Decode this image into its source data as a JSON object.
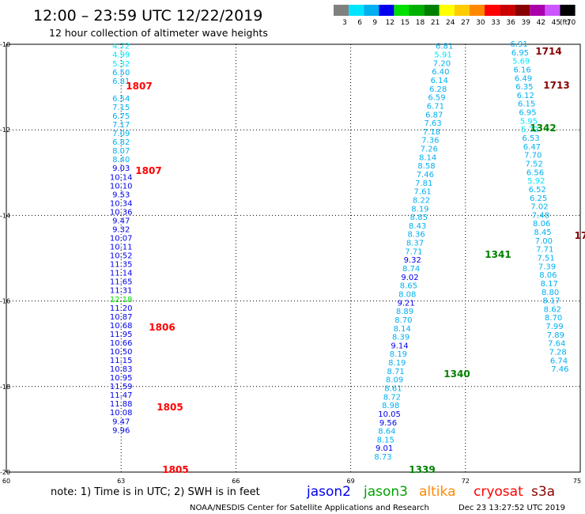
{
  "header": {
    "title": "12:00 – 23:59 UTC 12/22/2019",
    "subtitle": "12 hour collection of altimeter wave heights",
    "scale_unit": "(ft)"
  },
  "colorbar": [
    {
      "label": "3",
      "color": "#808080"
    },
    {
      "label": "6",
      "color": "#00e5ff"
    },
    {
      "label": "9",
      "color": "#00b0f0"
    },
    {
      "label": "12",
      "color": "#0000ee"
    },
    {
      "label": "15",
      "color": "#00e000"
    },
    {
      "label": "18",
      "color": "#00b000"
    },
    {
      "label": "21",
      "color": "#008000"
    },
    {
      "label": "24",
      "color": "#ffff00"
    },
    {
      "label": "27",
      "color": "#ffcc00"
    },
    {
      "label": "30",
      "color": "#ff8800"
    },
    {
      "label": "33",
      "color": "#ff0000"
    },
    {
      "label": "36",
      "color": "#cc0000"
    },
    {
      "label": "39",
      "color": "#880000"
    },
    {
      "label": "42",
      "color": "#aa00aa"
    },
    {
      "label": "45",
      "color": "#cc55ff"
    },
    {
      "label": "70",
      "color": "#000000"
    }
  ],
  "axes": {
    "lat_labels": [
      "-10",
      "-12",
      "-14",
      "-16",
      "-18",
      "-20"
    ],
    "lon_labels": [
      "60",
      "63",
      "66",
      "69",
      "72",
      "75"
    ]
  },
  "tracks": [
    {
      "lon": 63.0,
      "lat_start": -10.05,
      "lat_step": 0.204,
      "values": [
        "4.72",
        "4.99",
        "5.32",
        "6.50",
        "6.81",
        "",
        "6.54",
        "7.15",
        "6.75",
        "7.17",
        "7.09",
        "6.82",
        "8.07",
        "8.40",
        "9.03",
        "10.14",
        "10.10",
        "9.53",
        "10.34",
        "10.36",
        "9.47",
        "9.32",
        "10.07",
        "10.11",
        "10.52",
        "11.35",
        "11.14",
        "11.65",
        "11.31",
        "12.18",
        "11.20",
        "10.87",
        "10.68",
        "11.95",
        "10.66",
        "10.50",
        "11.15",
        "10.83",
        "10.95",
        "11.59",
        "11.47",
        "11.88",
        "10.08",
        "9.47",
        "9.96"
      ]
    },
    {
      "lon": 71.45,
      "lat_start": -10.05,
      "lat_step": 0.2,
      "values": [
        "6.81",
        "5.91",
        "7.20",
        "6.40",
        "6.14",
        "6.28",
        "6.59",
        "6.71",
        "6.87",
        "7.63",
        "7.18",
        "7.36",
        "7.26",
        "8.14",
        "8.58",
        "7.46",
        "7.81",
        "7.61",
        "8.22",
        "8.19",
        "8.85",
        "8.43",
        "8.36",
        "8.37",
        "7.71",
        "9.32",
        "8.74",
        "9.02",
        "8.65",
        "8.08",
        "9.21",
        "8.89",
        "8.70",
        "8.14",
        "8.39",
        "9.14",
        "8.19",
        "8.19",
        "8.71",
        "8.09",
        "8.61",
        "8.72",
        "8.98",
        "10.05",
        "9.56",
        "8.64",
        "8.15",
        "9.01",
        "8.73"
      ]
    },
    {
      "lon": 73.4,
      "lat_start": -10.0,
      "lat_step": 0.2,
      "values": [
        "6.91",
        "6.95",
        "5.69",
        "6.16",
        "6.49",
        "6.35",
        "6.12",
        "6.15",
        "6.95",
        "5.95",
        "5.72",
        "6.53",
        "6.47",
        "7.70",
        "7.52",
        "6.56",
        "5.92",
        "6.52",
        "6.25",
        "7.02",
        "7.48",
        "8.06",
        "8.45",
        "7.00",
        "7.71",
        "7.51",
        "7.39",
        "8.06",
        "8.17",
        "8.80",
        "8.17",
        "8.62",
        "8.70",
        "7.99",
        "7.89",
        "7.64",
        "7.28",
        "6.74",
        "7.46"
      ]
    }
  ],
  "time_labels": [
    {
      "text": "1807",
      "color": "#ff0000"
    },
    {
      "text": "1807",
      "color": "#ff0000"
    },
    {
      "text": "1806",
      "color": "#ff0000"
    },
    {
      "text": "1805",
      "color": "#ff0000"
    },
    {
      "text": "1805",
      "color": "#ff0000"
    },
    {
      "text": "1714",
      "color": "#880000"
    },
    {
      "text": "1713",
      "color": "#880000"
    },
    {
      "text": "1342",
      "color": "#008000"
    },
    {
      "text": "1341",
      "color": "#008000"
    },
    {
      "text": "1340",
      "color": "#008000"
    },
    {
      "text": "1339",
      "color": "#008000"
    },
    {
      "text": "17",
      "color": "#880000"
    }
  ],
  "footer": {
    "note": "note: 1) Time is in UTC; 2) SWH is in feet",
    "satellites": [
      {
        "name": "jason2",
        "color": "#0000ee"
      },
      {
        "name": "jason3",
        "color": "#00a000"
      },
      {
        "name": "altika",
        "color": "#ff8800"
      },
      {
        "name": "cryosat",
        "color": "#ff0000"
      },
      {
        "name": "s3a",
        "color": "#880000"
      }
    ],
    "credit": "NOAA/NESDIS Center for Satellite Applications and Research",
    "timestamp": "Dec 23 13:27:52 UTC 2019"
  }
}
